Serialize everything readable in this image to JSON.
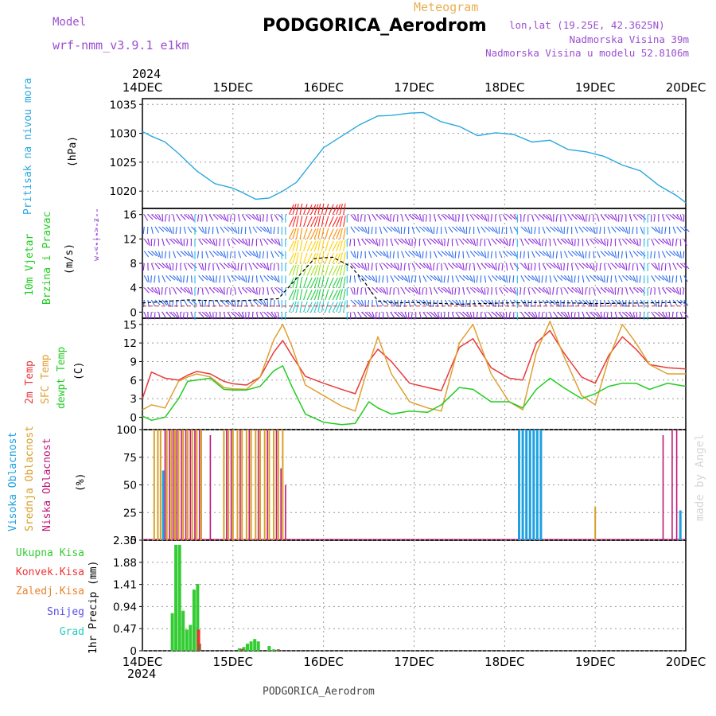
{
  "header": {
    "model_label": "Model",
    "model_name": "wrf-nmm_v3.9.1  e1km",
    "product": "Meteogram",
    "station": "PODGORICA_Aerodrom",
    "lonlat": "lon,lat (19.25E, 42.3625N)",
    "elevation": "Nadmorska Visina 39m",
    "model_elevation": "Nadmorska Visina u modelu 52.8106m",
    "footer": "PODGORICA_Aerodrom",
    "credit": "made by Angel"
  },
  "colors": {
    "pressure": "#2aa7e0",
    "t2m": "#e83a3a",
    "sfc": "#e0a030",
    "dew": "#22cc22",
    "wind_vio": "#8e2be2",
    "wind_blue": "#2f6df0",
    "cloud_high": "#1ea0e0",
    "cloud_mid": "#d8a028",
    "cloud_low": "#c01878",
    "precip_total": "#33cc33",
    "precip_conv": "#ee3333",
    "precip_frz": "#e8822a",
    "precip_snow": "#5a4ee8",
    "precip_grad": "#22ccbb"
  },
  "time_axis": {
    "year": "2024",
    "labels": [
      "14DEC",
      "15DEC",
      "16DEC",
      "17DEC",
      "18DEC",
      "19DEC",
      "20DEC"
    ]
  },
  "panels": {
    "pressure": {
      "title": "Pritisak na nivou mora",
      "unit": "(hPa)"
    },
    "wind": {
      "title1": "10m Vjetar",
      "title2": "Brzina i Pravac",
      "unit": "(m/s)",
      "rose": "w <-|-> z"
    },
    "temp": {
      "title1": "2m Temp",
      "title2": "SFC Temp",
      "title3": "dewpt Temp",
      "unit": "(C)"
    },
    "cloud": {
      "title1": "Visoka Oblacnost",
      "title2": "Srednja Oblacnost",
      "title3": "Niska Oblacnost",
      "unit": "(%)"
    },
    "precip": {
      "unit": "1hr Precip (mm)",
      "legend": [
        "Ukupna Kisa",
        "Konvek.Kisa",
        "Zaledj.Kisa",
        "Snijeg",
        "Grad"
      ]
    }
  },
  "chart_data": [
    {
      "type": "line",
      "title": "Pritisak na nivou mora",
      "ylabel": "(hPa)",
      "ylim": [
        1017,
        1036
      ],
      "yticks": [
        1020,
        1025,
        1030,
        1035
      ],
      "grid": true,
      "x": [
        0,
        0.1,
        0.25,
        0.4,
        0.6,
        0.8,
        1.0,
        1.1,
        1.25,
        1.4,
        1.55,
        1.7,
        1.85,
        2.0,
        2.2,
        2.4,
        2.6,
        2.75,
        2.95,
        3.1,
        3.3,
        3.5,
        3.7,
        3.9,
        4.1,
        4.3,
        4.5,
        4.7,
        4.9,
        5.1,
        5.3,
        5.5,
        5.7,
        5.9,
        6.0
      ],
      "series": [
        {
          "name": "Pritisak na nivou mora",
          "values": [
            1030.3,
            1029.5,
            1028.5,
            1026.5,
            1023.5,
            1021.3,
            1020.5,
            1019.8,
            1018.6,
            1018.8,
            1020.0,
            1021.5,
            1024.5,
            1027.5,
            1029.5,
            1031.5,
            1033.0,
            1033.1,
            1033.5,
            1033.6,
            1032.0,
            1031.2,
            1029.6,
            1030.1,
            1029.8,
            1028.5,
            1028.8,
            1027.2,
            1026.8,
            1026.0,
            1024.5,
            1023.5,
            1021.0,
            1019.2,
            1018.0
          ]
        }
      ]
    },
    {
      "type": "line",
      "title": "10m Vjetar Brzina i Pravac",
      "ylabel": "(m/s)",
      "ylim": [
        -1,
        17
      ],
      "yticks": [
        0,
        4,
        8,
        12,
        16
      ],
      "grid": true,
      "x": [
        0,
        0.5,
        1.0,
        1.5,
        1.7,
        1.9,
        2.1,
        2.3,
        2.45,
        2.6,
        2.8,
        3.0,
        3.5,
        4.0,
        4.5,
        5.0,
        5.5,
        6.0
      ],
      "series": [
        {
          "name": "speed",
          "values": [
            1.5,
            2.0,
            1.8,
            2.2,
            5.5,
            8.8,
            9.0,
            7.5,
            5.0,
            1.8,
            1.5,
            1.6,
            1.3,
            1.5,
            1.6,
            1.4,
            1.5,
            1.6
          ]
        }
      ]
    },
    {
      "type": "line",
      "title": "2m Temp / SFC Temp / dewpt Temp",
      "ylabel": "(C)",
      "ylim": [
        -2,
        16
      ],
      "yticks": [
        0,
        3,
        6,
        9,
        12,
        15
      ],
      "grid": true,
      "x": [
        0,
        0.1,
        0.25,
        0.4,
        0.5,
        0.6,
        0.75,
        0.9,
        1.0,
        1.15,
        1.3,
        1.45,
        1.55,
        1.65,
        1.8,
        2.0,
        2.2,
        2.35,
        2.5,
        2.6,
        2.75,
        2.95,
        3.15,
        3.3,
        3.5,
        3.65,
        3.85,
        4.05,
        4.2,
        4.35,
        4.5,
        4.65,
        4.85,
        5.0,
        5.15,
        5.3,
        5.45,
        5.6,
        5.8,
        6.0
      ],
      "series": [
        {
          "name": "2m Temp",
          "values": [
            3.0,
            7.3,
            6.3,
            6.0,
            6.8,
            7.4,
            7.0,
            5.8,
            5.4,
            5.2,
            6.5,
            10.5,
            12.4,
            10.0,
            6.6,
            5.5,
            4.5,
            3.8,
            9.0,
            11.0,
            9.0,
            5.5,
            4.8,
            4.3,
            11.3,
            12.7,
            8.0,
            6.3,
            6.0,
            12.0,
            14.0,
            10.5,
            6.5,
            5.5,
            10.0,
            13.0,
            11.0,
            8.5,
            8.0,
            7.8
          ]
        },
        {
          "name": "SFC Temp",
          "values": [
            1.2,
            2.0,
            1.5,
            5.8,
            6.5,
            7.0,
            6.5,
            4.8,
            4.6,
            4.5,
            6.5,
            12.5,
            15.0,
            11.5,
            5.2,
            3.5,
            1.8,
            1.0,
            8.5,
            13.0,
            7.0,
            2.5,
            1.5,
            1.0,
            12.0,
            15.0,
            7.0,
            2.5,
            1.2,
            10.5,
            15.5,
            10.0,
            3.5,
            2.0,
            9.5,
            15.0,
            12.0,
            8.5,
            7.0,
            7.0
          ]
        },
        {
          "name": "dewpt Temp",
          "values": [
            0.2,
            -0.5,
            0.0,
            3.0,
            5.8,
            6.0,
            6.3,
            4.5,
            4.4,
            4.4,
            5.0,
            7.5,
            8.3,
            5.0,
            0.5,
            -0.8,
            -1.2,
            -1.0,
            2.5,
            1.5,
            0.5,
            1.0,
            0.8,
            2.0,
            4.8,
            4.5,
            2.5,
            2.5,
            1.5,
            4.5,
            6.3,
            4.8,
            3.0,
            3.8,
            5.0,
            5.5,
            5.5,
            4.5,
            5.5,
            5.0
          ]
        }
      ]
    },
    {
      "type": "bar",
      "title": "Oblacnost",
      "ylabel": "(%)",
      "ylim": [
        0,
        100
      ],
      "yticks": [
        0,
        25,
        50,
        75,
        100
      ],
      "grid": true,
      "series": [
        {
          "name": "Visoka Oblacnost",
          "x": [
            0.23,
            4.16,
            4.2,
            4.24,
            4.28,
            4.32,
            4.36,
            4.4,
            5.94
          ],
          "values": [
            63,
            100,
            100,
            100,
            100,
            100,
            100,
            100,
            27
          ]
        },
        {
          "name": "Srednja Oblacnost",
          "x": [
            0.13,
            0.17,
            0.2,
            0.27,
            0.32,
            0.36,
            0.4,
            0.45,
            0.5,
            0.55,
            0.6,
            0.65,
            0.9,
            0.95,
            1.0,
            1.05,
            1.1,
            1.15,
            1.2,
            1.25,
            1.3,
            1.35,
            1.4,
            1.45,
            1.5,
            1.55,
            5.0
          ],
          "values": [
            100,
            100,
            100,
            100,
            100,
            100,
            100,
            100,
            100,
            100,
            100,
            100,
            100,
            100,
            100,
            100,
            100,
            100,
            100,
            100,
            100,
            100,
            100,
            100,
            100,
            100,
            30
          ]
        },
        {
          "name": "Niska Oblacnost",
          "x": [
            0.25,
            0.3,
            0.34,
            0.38,
            0.43,
            0.48,
            0.53,
            0.58,
            0.63,
            0.75,
            0.93,
            0.98,
            1.08,
            1.18,
            1.28,
            1.38,
            1.48,
            1.53,
            1.58,
            5.75,
            5.85,
            5.9
          ],
          "values": [
            100,
            100,
            100,
            100,
            100,
            100,
            100,
            100,
            100,
            95,
            100,
            100,
            100,
            100,
            100,
            100,
            100,
            65,
            50,
            95,
            100,
            100
          ]
        }
      ]
    },
    {
      "type": "bar",
      "title": "1hr Precip",
      "ylabel": "1hr Precip (mm)",
      "ylim": [
        0,
        2.35
      ],
      "yticks": [
        0,
        0.47,
        0.94,
        1.41,
        1.88,
        2.35
      ],
      "grid": true,
      "series": [
        {
          "name": "Ukupna Kisa",
          "x": [
            0.33,
            0.37,
            0.41,
            0.45,
            0.49,
            0.53,
            0.57,
            0.61,
            1.07,
            1.12,
            1.16,
            1.2,
            1.24,
            1.28,
            1.4,
            1.45
          ],
          "values": [
            0.8,
            2.25,
            2.25,
            0.85,
            0.45,
            0.55,
            1.3,
            1.42,
            0.05,
            0.08,
            0.15,
            0.2,
            0.25,
            0.2,
            0.1,
            0.03
          ]
        },
        {
          "name": "Konvek.Kisa",
          "x": [
            0.62
          ],
          "values": [
            0.45
          ]
        },
        {
          "name": "Zaledj.Kisa",
          "x": [
            0.63,
            1.1,
            1.5
          ],
          "values": [
            0.15,
            0.04,
            0.03
          ]
        },
        {
          "name": "Snijeg",
          "x": [],
          "values": []
        },
        {
          "name": "Grad",
          "x": [],
          "values": []
        }
      ]
    }
  ]
}
